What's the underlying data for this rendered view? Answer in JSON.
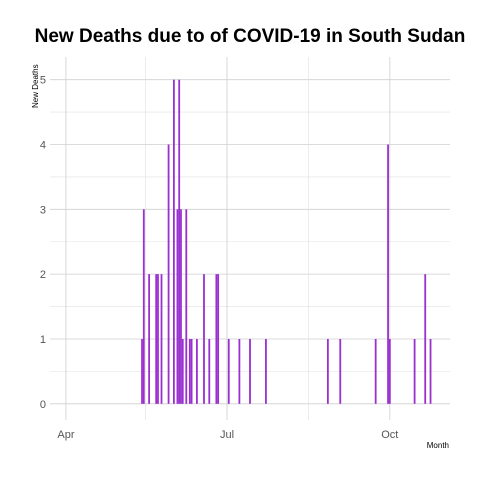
{
  "chart_data": {
    "type": "bar",
    "title": "New Deaths due to of COVID-19 in South Sudan",
    "xlabel": "Month",
    "ylabel": "New  Deaths",
    "x_tick_labels": [
      {
        "date": "2020-04-01",
        "label": "Apr"
      },
      {
        "date": "2020-07-01",
        "label": "Jul"
      },
      {
        "date": "2020-10-01",
        "label": "Oct"
      }
    ],
    "x_minor_ticks": [
      "2020-05-16",
      "2020-08-16"
    ],
    "xlim": [
      "2020-03-23",
      "2020-11-04"
    ],
    "ylim": [
      -0.25,
      5.35
    ],
    "y_ticks": [
      0,
      1,
      2,
      3,
      4,
      5
    ],
    "bar_color": "#9b30d0",
    "grid": true,
    "x": [
      "2020-05-14",
      "2020-05-15",
      "2020-05-18",
      "2020-05-22",
      "2020-05-23",
      "2020-05-25",
      "2020-05-29",
      "2020-06-01",
      "2020-06-03",
      "2020-06-04",
      "2020-06-05",
      "2020-06-06",
      "2020-06-08",
      "2020-06-10",
      "2020-06-11",
      "2020-06-14",
      "2020-06-18",
      "2020-06-21",
      "2020-06-25",
      "2020-06-26",
      "2020-07-02",
      "2020-07-08",
      "2020-07-14",
      "2020-07-23",
      "2020-08-27",
      "2020-09-03",
      "2020-09-23",
      "2020-09-30",
      "2020-10-01",
      "2020-10-15",
      "2020-10-21",
      "2020-10-24"
    ],
    "values": [
      1,
      3,
      2,
      2,
      2,
      2,
      4,
      5,
      3,
      5,
      3,
      1,
      3,
      1,
      1,
      1,
      2,
      1,
      2,
      2,
      1,
      1,
      1,
      1,
      1,
      1,
      1,
      4,
      1,
      1,
      2,
      1
    ]
  }
}
